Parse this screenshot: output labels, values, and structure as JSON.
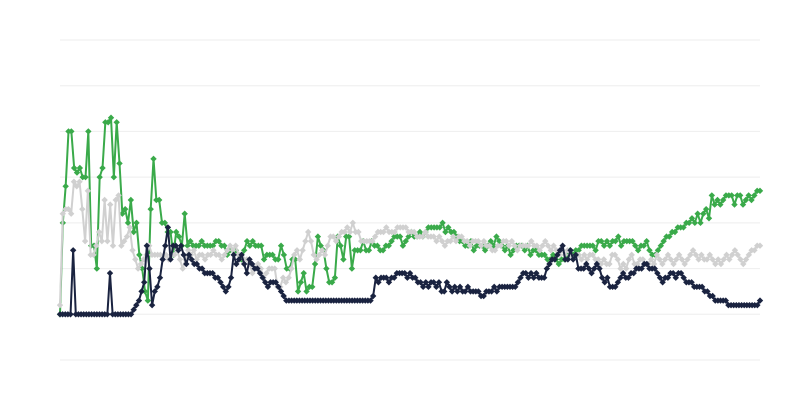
{
  "chart_data": {
    "type": "line",
    "title": "",
    "xlabel": "",
    "ylabel": "",
    "ylim": [
      -1,
      6
    ],
    "grid": "horizontal",
    "legend": "none",
    "series": [
      {
        "color": "#3aaa4a",
        "values": [
          0.0,
          2.0,
          2.8,
          4.0,
          4.0,
          3.2,
          3.1,
          3.2,
          3.0,
          3.0,
          4.0,
          1.5,
          1.5,
          1.0,
          3.0,
          3.2,
          4.2,
          4.2,
          4.3,
          3.0,
          4.2,
          3.3,
          2.2,
          2.3,
          2.0,
          2.5,
          1.8,
          2.0,
          1.3,
          1.0,
          0.5,
          0.3,
          2.3,
          3.4,
          2.5,
          2.5,
          2.0,
          2.0,
          1.8,
          1.8,
          1.3,
          1.8,
          1.7,
          1.5,
          2.2,
          1.5,
          1.6,
          1.5,
          1.5,
          1.5,
          1.6,
          1.5,
          1.5,
          1.5,
          1.5,
          1.6,
          1.6,
          1.5,
          1.5,
          1.3,
          1.4,
          1.4,
          1.4,
          1.3,
          1.2,
          1.4,
          1.6,
          1.5,
          1.6,
          1.5,
          1.5,
          1.5,
          1.2,
          1.3,
          1.3,
          1.3,
          1.2,
          1.2,
          1.5,
          1.3,
          1.0,
          1.0,
          1.2,
          1.2,
          0.5,
          0.7,
          0.9,
          0.5,
          0.6,
          0.6,
          1.1,
          1.7,
          1.5,
          1.4,
          1.0,
          0.7,
          0.7,
          0.8,
          1.7,
          1.5,
          1.2,
          1.7,
          1.7,
          1.0,
          1.4,
          1.4,
          1.4,
          1.6,
          1.4,
          1.4,
          1.6,
          1.5,
          1.5,
          1.4,
          1.4,
          1.5,
          1.5,
          1.6,
          1.7,
          1.7,
          1.7,
          1.5,
          1.6,
          1.7,
          1.8,
          1.7,
          1.7,
          1.8,
          1.7,
          1.8,
          1.9,
          1.9,
          1.9,
          1.9,
          1.9,
          2.0,
          1.8,
          1.9,
          1.8,
          1.8,
          1.7,
          1.6,
          1.6,
          1.5,
          1.5,
          1.6,
          1.4,
          1.5,
          1.5,
          1.5,
          1.4,
          1.5,
          1.6,
          1.5,
          1.7,
          1.6,
          1.5,
          1.4,
          1.5,
          1.3,
          1.4,
          1.5,
          1.5,
          1.5,
          1.4,
          1.5,
          1.3,
          1.4,
          1.4,
          1.3,
          1.3,
          1.3,
          1.2,
          1.2,
          1.3,
          1.2,
          1.1,
          1.2,
          1.2,
          1.3,
          1.4,
          1.3,
          1.4,
          1.4,
          1.5,
          1.5,
          1.5,
          1.5,
          1.5,
          1.4,
          1.6,
          1.6,
          1.5,
          1.6,
          1.5,
          1.6,
          1.6,
          1.7,
          1.5,
          1.6,
          1.6,
          1.6,
          1.6,
          1.5,
          1.4,
          1.5,
          1.5,
          1.6,
          1.4,
          1.3,
          1.3,
          1.4,
          1.5,
          1.6,
          1.7,
          1.7,
          1.8,
          1.8,
          1.9,
          1.9,
          1.9,
          2.0,
          2.0,
          2.1,
          2.0,
          2.2,
          2.0,
          2.2,
          2.3,
          2.1,
          2.6,
          2.4,
          2.5,
          2.4,
          2.5,
          2.6,
          2.6,
          2.6,
          2.4,
          2.6,
          2.6,
          2.4,
          2.5,
          2.6,
          2.5,
          2.6,
          2.7,
          2.7
        ]
      },
      {
        "color": "#d0d0d0",
        "values": [
          0.2,
          2.2,
          2.3,
          2.3,
          2.2,
          2.9,
          2.8,
          2.9,
          2.3,
          1.6,
          2.7,
          1.3,
          1.3,
          1.5,
          1.8,
          1.6,
          2.5,
          1.6,
          2.4,
          1.5,
          2.5,
          2.6,
          1.5,
          1.6,
          1.7,
          1.9,
          1.4,
          1.2,
          1.0,
          1.1,
          1.2,
          1.3,
          1.5,
          1.3,
          1.3,
          1.3,
          1.3,
          1.2,
          1.3,
          1.2,
          1.3,
          1.3,
          1.4,
          1.2,
          1.0,
          1.2,
          1.4,
          1.3,
          1.4,
          1.2,
          1.3,
          1.3,
          1.2,
          1.3,
          1.3,
          1.4,
          1.3,
          1.3,
          1.2,
          1.3,
          1.4,
          1.5,
          1.4,
          1.5,
          1.3,
          1.3,
          1.2,
          1.2,
          1.1,
          0.9,
          1.0,
          1.1,
          1.0,
          0.8,
          0.9,
          1.0,
          1.0,
          1.0,
          0.6,
          0.6,
          0.8,
          0.7,
          0.8,
          1.0,
          1.3,
          1.4,
          1.2,
          1.4,
          1.6,
          1.8,
          1.6,
          1.3,
          1.2,
          1.3,
          1.4,
          1.3,
          1.5,
          1.7,
          1.7,
          1.6,
          1.7,
          1.8,
          1.8,
          1.9,
          1.8,
          2.0,
          1.8,
          1.8,
          1.6,
          1.6,
          1.6,
          1.6,
          1.6,
          1.7,
          1.8,
          1.8,
          1.8,
          1.9,
          1.8,
          1.8,
          1.8,
          1.9,
          1.9,
          1.9,
          1.9,
          1.8,
          1.8,
          1.8,
          1.7,
          1.7,
          1.7,
          1.8,
          1.7,
          1.7,
          1.7,
          1.6,
          1.7,
          1.6,
          1.5,
          1.6,
          1.6,
          1.7,
          1.6,
          1.7,
          1.7,
          1.6,
          1.6,
          1.5,
          1.6,
          1.6,
          1.6,
          1.5,
          1.6,
          1.5,
          1.5,
          1.4,
          1.4,
          1.5,
          1.5,
          1.6,
          1.6,
          1.5,
          1.6,
          1.5,
          1.4,
          1.5,
          1.5,
          1.5,
          1.5,
          1.6,
          1.5,
          1.5,
          1.4,
          1.5,
          1.6,
          1.5,
          1.4,
          1.5,
          1.4,
          1.3,
          1.4,
          1.3,
          1.4,
          1.3,
          1.2,
          1.3,
          1.3,
          1.2,
          1.3,
          1.2,
          1.3,
          1.3,
          1.2,
          1.2,
          1.1,
          1.2,
          1.1,
          1.1,
          1.3,
          1.3,
          1.2,
          1.0,
          1.1,
          1.0,
          1.2,
          1.3,
          1.1,
          1.1,
          1.2,
          1.2,
          1.1,
          1.1,
          1.2,
          1.1,
          1.3,
          1.2,
          1.1,
          1.2,
          1.3,
          1.2,
          1.1,
          1.2,
          1.3,
          1.2,
          1.1,
          1.2,
          1.3,
          1.4,
          1.3,
          1.2,
          1.3,
          1.2,
          1.2,
          1.3,
          1.2,
          1.1,
          1.2,
          1.1,
          1.2,
          1.3,
          1.2,
          1.3,
          1.4,
          1.3,
          1.2,
          1.1,
          1.2,
          1.3,
          1.4,
          1.4,
          1.5,
          1.5
        ]
      },
      {
        "color": "#1a2340",
        "values": [
          0.0,
          0.0,
          0.0,
          0.0,
          0.0,
          1.4,
          0.0,
          0.0,
          0.0,
          0.0,
          0.0,
          0.0,
          0.0,
          0.0,
          0.0,
          0.0,
          0.0,
          0.0,
          0.0,
          0.9,
          0.0,
          0.0,
          0.0,
          0.0,
          0.0,
          0.0,
          0.0,
          0.0,
          0.1,
          0.2,
          0.3,
          0.5,
          0.7,
          1.5,
          1.0,
          0.2,
          0.5,
          0.6,
          0.8,
          1.2,
          1.5,
          1.9,
          1.2,
          1.5,
          1.5,
          1.4,
          1.5,
          1.3,
          1.1,
          1.3,
          1.2,
          1.1,
          1.1,
          1.0,
          1.0,
          0.9,
          0.9,
          0.9,
          0.9,
          0.8,
          0.8,
          0.7,
          0.6,
          0.5,
          0.6,
          0.8,
          1.3,
          1.1,
          1.2,
          1.3,
          1.1,
          0.9,
          1.2,
          1.1,
          1.0,
          1.0,
          0.9,
          0.8,
          0.7,
          0.6,
          0.7,
          0.7,
          0.7,
          0.6,
          0.5,
          0.4,
          0.3,
          0.3,
          0.3,
          0.3,
          0.3,
          0.3,
          0.3,
          0.3,
          0.3,
          0.3,
          0.3,
          0.3,
          0.3,
          0.3,
          0.3,
          0.3,
          0.3,
          0.3,
          0.3,
          0.3,
          0.3,
          0.3,
          0.3,
          0.3,
          0.3,
          0.3,
          0.3,
          0.3,
          0.3,
          0.3,
          0.3,
          0.3,
          0.3,
          0.4,
          0.8,
          0.7,
          0.8,
          0.8,
          0.8,
          0.7,
          0.8,
          0.8,
          0.9,
          0.9,
          0.9,
          0.9,
          0.8,
          0.9,
          0.8,
          0.8,
          0.7,
          0.7,
          0.6,
          0.7,
          0.6,
          0.7,
          0.7,
          0.6,
          0.7,
          0.5,
          0.5,
          0.7,
          0.6,
          0.5,
          0.6,
          0.5,
          0.6,
          0.5,
          0.5,
          0.6,
          0.5,
          0.5,
          0.5,
          0.5,
          0.4,
          0.4,
          0.5,
          0.5,
          0.5,
          0.6,
          0.5,
          0.6,
          0.6,
          0.6,
          0.6,
          0.6,
          0.6,
          0.6,
          0.7,
          0.8,
          0.9,
          0.9,
          0.8,
          0.9,
          0.8,
          0.9,
          0.8,
          0.8,
          0.8,
          1.0,
          1.1,
          1.2,
          1.2,
          1.3,
          1.4,
          1.5,
          1.2,
          1.2,
          1.4,
          1.2,
          1.3,
          1.0,
          1.0,
          1.0,
          1.1,
          1.0,
          0.9,
          1.0,
          1.1,
          1.0,
          0.8,
          0.7,
          0.8,
          0.6,
          0.6,
          0.6,
          0.7,
          0.8,
          0.9,
          0.8,
          0.8,
          0.9,
          0.9,
          1.0,
          1.0,
          1.0,
          1.1,
          1.1,
          1.0,
          1.0,
          1.0,
          0.9,
          0.8,
          0.7,
          0.8,
          0.8,
          0.9,
          0.9,
          0.8,
          0.9,
          0.9,
          0.8,
          0.7,
          0.7,
          0.7,
          0.6,
          0.6,
          0.6,
          0.6,
          0.5,
          0.5,
          0.4,
          0.4,
          0.3,
          0.3,
          0.3,
          0.3,
          0.3,
          0.2,
          0.2,
          0.2,
          0.2,
          0.2,
          0.2,
          0.2,
          0.2,
          0.2,
          0.2,
          0.2,
          0.2,
          0.3
        ]
      }
    ]
  }
}
